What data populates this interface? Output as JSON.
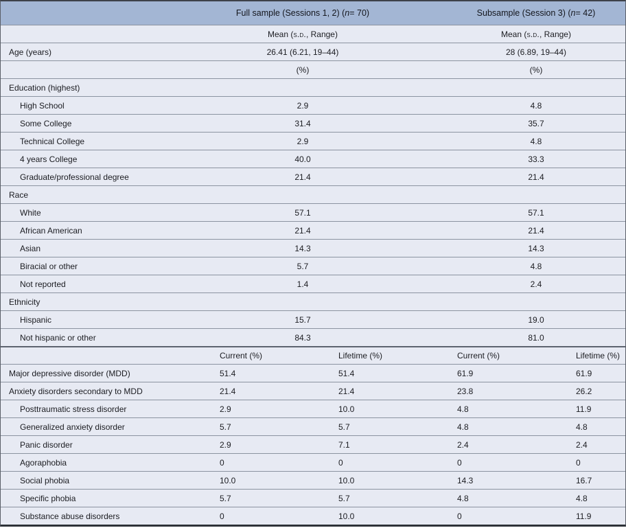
{
  "table": {
    "header": {
      "full_sample": {
        "pre": "Full sample (Sessions 1, 2) (",
        "n": "n",
        "post": " = 70)"
      },
      "subsample": {
        "pre": "Subsample (Session 3) (",
        "n": "n",
        "post": " = 42)"
      }
    },
    "stats_row": {
      "pre": "Mean (",
      "sd": "s.d.",
      "post": ", Range)"
    },
    "top_rows": [
      {
        "type": "stats"
      },
      {
        "type": "data",
        "label": "Age (years)",
        "indent": false,
        "v1": "26.41 (6.21, 19–44)",
        "v2": "28 (6.89, 19–44)"
      },
      {
        "type": "data",
        "label": "",
        "indent": false,
        "v1": "(%)",
        "v2": "(%)"
      },
      {
        "type": "section",
        "label": "Education (highest)"
      },
      {
        "type": "data",
        "label": "High School",
        "indent": true,
        "v1": "2.9",
        "v2": "4.8"
      },
      {
        "type": "data",
        "label": "Some College",
        "indent": true,
        "v1": "31.4",
        "v2": "35.7"
      },
      {
        "type": "data",
        "label": "Technical College",
        "indent": true,
        "v1": "2.9",
        "v2": "4.8"
      },
      {
        "type": "data",
        "label": "4 years College",
        "indent": true,
        "v1": "40.0",
        "v2": "33.3"
      },
      {
        "type": "data",
        "label": "Graduate/professional degree",
        "indent": true,
        "v1": "21.4",
        "v2": "21.4"
      },
      {
        "type": "section",
        "label": "Race"
      },
      {
        "type": "data",
        "label": "White",
        "indent": true,
        "v1": "57.1",
        "v2": "57.1"
      },
      {
        "type": "data",
        "label": "African American",
        "indent": true,
        "v1": "21.4",
        "v2": "21.4"
      },
      {
        "type": "data",
        "label": "Asian",
        "indent": true,
        "v1": "14.3",
        "v2": "14.3"
      },
      {
        "type": "data",
        "label": "Biracial or other",
        "indent": true,
        "v1": "5.7",
        "v2": "4.8"
      },
      {
        "type": "data",
        "label": "Not reported",
        "indent": true,
        "v1": "1.4",
        "v2": "2.4"
      },
      {
        "type": "section",
        "label": "Ethnicity"
      },
      {
        "type": "data",
        "label": "Hispanic",
        "indent": true,
        "v1": "15.7",
        "v2": "19.0"
      },
      {
        "type": "data",
        "label": "Not hispanic or other",
        "indent": true,
        "v1": "84.3",
        "v2": "81.0"
      }
    ],
    "mid_header": [
      "Current (%)",
      "Lifetime (%)",
      "Current (%)",
      "Lifetime (%)"
    ],
    "bottom_rows": [
      {
        "label": "Major depressive disorder (MDD)",
        "indent": false,
        "values": [
          "51.4",
          "51.4",
          "61.9",
          "61.9"
        ]
      },
      {
        "label": "Anxiety disorders secondary to MDD",
        "indent": false,
        "values": [
          "21.4",
          "21.4",
          "23.8",
          "26.2"
        ]
      },
      {
        "label": "Posttraumatic stress disorder",
        "indent": true,
        "values": [
          "2.9",
          "10.0",
          "4.8",
          "11.9"
        ]
      },
      {
        "label": "Generalized anxiety disorder",
        "indent": true,
        "values": [
          "5.7",
          "5.7",
          "4.8",
          "4.8"
        ]
      },
      {
        "label": "Panic disorder",
        "indent": true,
        "values": [
          "2.9",
          "7.1",
          "2.4",
          "2.4"
        ]
      },
      {
        "label": "Agoraphobia",
        "indent": true,
        "values": [
          "0",
          "0",
          "0",
          "0"
        ]
      },
      {
        "label": "Social phobia",
        "indent": true,
        "values": [
          "10.0",
          "10.0",
          "14.3",
          "16.7"
        ]
      },
      {
        "label": "Specific phobia",
        "indent": true,
        "values": [
          "5.7",
          "5.7",
          "4.8",
          "4.8"
        ]
      },
      {
        "label": "Substance abuse disorders",
        "indent": true,
        "values": [
          "0",
          "10.0",
          "0",
          "11.9"
        ]
      }
    ],
    "colors": {
      "header_bg": "#a3b6d4",
      "row_bg": "#e7eaf3",
      "separator": "#8b93a0",
      "outer_border": "#3d4149"
    }
  }
}
